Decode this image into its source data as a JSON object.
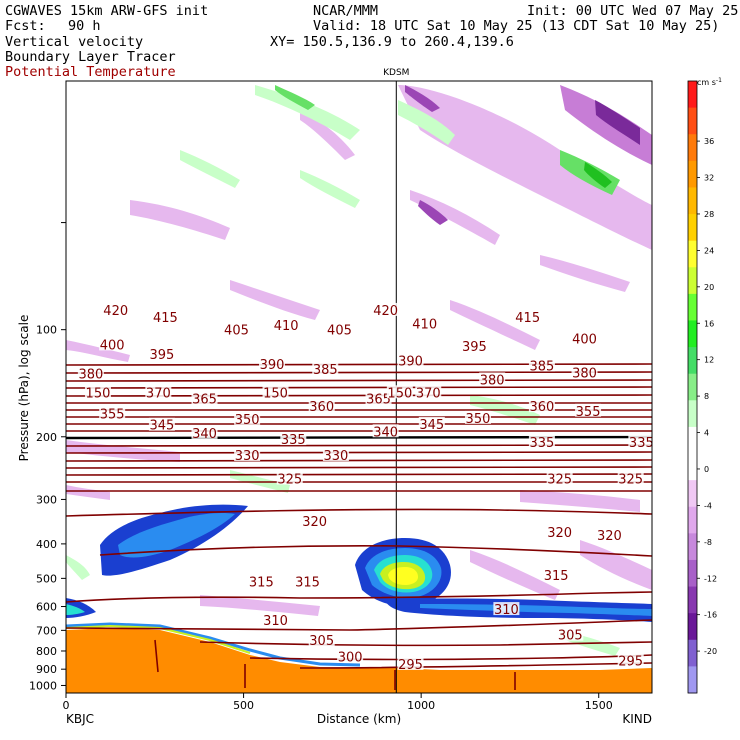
{
  "header": {
    "model": "CGWAVES 15km ARW-GFS init",
    "fcst_label": "Fcst:",
    "fcst_value": "90 h",
    "field1": "Vertical velocity",
    "field2": "Boundary Layer Tracer",
    "field3": "Potential Temperature",
    "center": "NCAR/MMM",
    "init": "Init: 00 UTC Wed 07 May 25",
    "valid": "Valid: 18 UTC Sat 10 May 25 (13 CDT Sat 10 May 25)",
    "xy": "XY= 150.5,136.9 to 260.4,139.6"
  },
  "colors": {
    "theta": "#800000",
    "tracer": "#ff8c00",
    "neg_w": [
      "#e6b8ee",
      "#c77dd6",
      "#9b46b5",
      "#7a2a9a"
    ],
    "pos_w": [
      "#c8ffc8",
      "#66e066",
      "#20c020"
    ],
    "jet": [
      "#1a3fd0",
      "#2a8cf0",
      "#27e0d0",
      "#c8f020",
      "#ffff20"
    ]
  },
  "chart_data": {
    "type": "cross-section",
    "xlabel": "Distance (km)",
    "ylabel": "Pressure (hPa), log scale",
    "x_ticks": [
      0,
      500,
      1000,
      1500
    ],
    "xlim": [
      0,
      1650
    ],
    "y_ticks": [
      100,
      200,
      300,
      400,
      500,
      600,
      700,
      800,
      900,
      1000
    ],
    "ylim": [
      1050,
      20
    ],
    "y_scale": "log",
    "left_station": "KBJC",
    "right_station": "KIND",
    "marker_station": "KDSM",
    "marker_x": 930,
    "theta_labels": [
      {
        "text": "420",
        "x": 140,
        "p": 88
      },
      {
        "text": "415",
        "x": 280,
        "p": 92
      },
      {
        "text": "405",
        "x": 480,
        "p": 100
      },
      {
        "text": "410",
        "x": 620,
        "p": 97
      },
      {
        "text": "405",
        "x": 770,
        "p": 100
      },
      {
        "text": "420",
        "x": 900,
        "p": 88
      },
      {
        "text": "410",
        "x": 1010,
        "p": 96
      },
      {
        "text": "415",
        "x": 1300,
        "p": 92
      },
      {
        "text": "400",
        "x": 130,
        "p": 110
      },
      {
        "text": "395",
        "x": 270,
        "p": 117
      },
      {
        "text": "390",
        "x": 580,
        "p": 125
      },
      {
        "text": "385",
        "x": 730,
        "p": 129
      },
      {
        "text": "390",
        "x": 970,
        "p": 122
      },
      {
        "text": "395",
        "x": 1150,
        "p": 111
      },
      {
        "text": "385",
        "x": 1340,
        "p": 126
      },
      {
        "text": "400",
        "x": 1460,
        "p": 106
      },
      {
        "text": "380",
        "x": 70,
        "p": 133
      },
      {
        "text": "380",
        "x": 1200,
        "p": 138
      },
      {
        "text": "380",
        "x": 1460,
        "p": 132
      },
      {
        "text": "150",
        "x": 90,
        "p": 150
      },
      {
        "text": "370",
        "x": 260,
        "p": 150
      },
      {
        "text": "365",
        "x": 390,
        "p": 156
      },
      {
        "text": "150",
        "x": 590,
        "p": 150
      },
      {
        "text": "365",
        "x": 880,
        "p": 156
      },
      {
        "text": "150",
        "x": 940,
        "p": 150
      },
      {
        "text": "370",
        "x": 1020,
        "p": 150
      },
      {
        "text": "355",
        "x": 130,
        "p": 172
      },
      {
        "text": "345",
        "x": 270,
        "p": 185
      },
      {
        "text": "350",
        "x": 510,
        "p": 178
      },
      {
        "text": "360",
        "x": 720,
        "p": 164
      },
      {
        "text": "340",
        "x": 390,
        "p": 195
      },
      {
        "text": "335",
        "x": 640,
        "p": 203
      },
      {
        "text": "340",
        "x": 900,
        "p": 193
      },
      {
        "text": "345",
        "x": 1030,
        "p": 184
      },
      {
        "text": "350",
        "x": 1160,
        "p": 177
      },
      {
        "text": "360",
        "x": 1340,
        "p": 164
      },
      {
        "text": "355",
        "x": 1470,
        "p": 169
      },
      {
        "text": "330",
        "x": 510,
        "p": 225
      },
      {
        "text": "330",
        "x": 760,
        "p": 225
      },
      {
        "text": "335",
        "x": 1340,
        "p": 207
      },
      {
        "text": "335",
        "x": 1620,
        "p": 207
      },
      {
        "text": "325",
        "x": 630,
        "p": 262
      },
      {
        "text": "325",
        "x": 1390,
        "p": 262
      },
      {
        "text": "325",
        "x": 1590,
        "p": 262
      },
      {
        "text": "320",
        "x": 700,
        "p": 345
      },
      {
        "text": "320",
        "x": 1390,
        "p": 370
      },
      {
        "text": "320",
        "x": 1530,
        "p": 378
      },
      {
        "text": "315",
        "x": 550,
        "p": 510
      },
      {
        "text": "315",
        "x": 680,
        "p": 510
      },
      {
        "text": "315",
        "x": 1380,
        "p": 490
      },
      {
        "text": "310",
        "x": 590,
        "p": 655
      },
      {
        "text": "310",
        "x": 1240,
        "p": 610
      },
      {
        "text": "305",
        "x": 720,
        "p": 745
      },
      {
        "text": "305",
        "x": 1420,
        "p": 720
      },
      {
        "text": "300",
        "x": 800,
        "p": 830
      },
      {
        "text": "295",
        "x": 970,
        "p": 870
      },
      {
        "text": "295",
        "x": 1590,
        "p": 850
      }
    ],
    "colorbar": {
      "units": "cm s",
      "units_exp": "-1",
      "tick_labels": [
        "36",
        "32",
        "28",
        "24",
        "20",
        "16",
        "12",
        "8",
        "4",
        "0",
        "-4",
        "-8",
        "-12",
        "-16",
        "-20"
      ],
      "colors": [
        "#ff1a1a",
        "#ff4e14",
        "#ff7a0a",
        "#ff9900",
        "#ffb800",
        "#ffd000",
        "#ffff30",
        "#ccff33",
        "#66ff33",
        "#22ee22",
        "#44dd66",
        "#88ee88",
        "#c8ffc8",
        "#ffffff",
        "#ffffff",
        "#f0c8f4",
        "#e0a8ec",
        "#c788dc",
        "#a860c8",
        "#8838b0",
        "#6a1898",
        "#8060d0",
        "#a098f0"
      ]
    }
  }
}
